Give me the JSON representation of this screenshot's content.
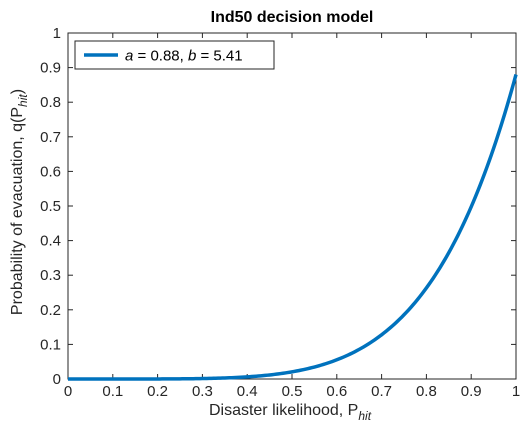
{
  "chart_data": {
    "type": "line",
    "title": "Ind50 decision model",
    "xlabel": "Disaster likelihood, P",
    "xlabel_sub": "hit",
    "ylabel": "Probability of evacuation, q(P",
    "ylabel_sub": "hit",
    "ylabel_close": ")",
    "xlim": [
      0,
      1
    ],
    "ylim": [
      0,
      1
    ],
    "xticks": [
      0,
      0.1,
      0.2,
      0.3,
      0.4,
      0.5,
      0.6,
      0.7,
      0.8,
      0.9,
      1
    ],
    "yticks": [
      0,
      0.1,
      0.2,
      0.3,
      0.4,
      0.5,
      0.6,
      0.7,
      0.8,
      0.9,
      1
    ],
    "xtick_labels": [
      "0",
      "0.1",
      "0.2",
      "0.3",
      "0.4",
      "0.5",
      "0.6",
      "0.7",
      "0.8",
      "0.9",
      "1"
    ],
    "ytick_labels": [
      "0",
      "0.1",
      "0.2",
      "0.3",
      "0.4",
      "0.5",
      "0.6",
      "0.7",
      "0.8",
      "0.9",
      "1"
    ],
    "grid": false,
    "legend_position": "top-left",
    "series": [
      {
        "name": "a = 0.88, b = 5.41",
        "legend_a_var": "a",
        "legend_a_val": " = 0.88, ",
        "legend_b_var": "b",
        "legend_b_val": " = 5.41",
        "color": "#0072BD",
        "a": 0.88,
        "b": 5.41,
        "x": [
          0,
          0.1,
          0.2,
          0.3,
          0.4,
          0.5,
          0.6,
          0.7,
          0.8,
          0.9,
          1
        ],
        "y": [
          0,
          0.0,
          0.0,
          0.001,
          0.006,
          0.021,
          0.055,
          0.128,
          0.262,
          0.497,
          0.88
        ]
      }
    ]
  }
}
